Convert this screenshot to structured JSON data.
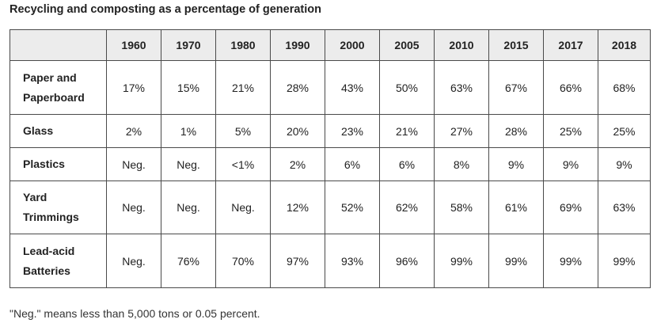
{
  "title": "Recycling and composting as a percentage of generation",
  "table": {
    "years": [
      "1960",
      "1970",
      "1980",
      "1990",
      "2000",
      "2005",
      "2010",
      "2015",
      "2017",
      "2018"
    ],
    "rows": [
      {
        "label_line1": "Paper and",
        "label_line2": "Paperboard",
        "values": [
          "17%",
          "15%",
          "21%",
          "28%",
          "43%",
          "50%",
          "63%",
          "67%",
          "66%",
          "68%"
        ]
      },
      {
        "label_line1": "Glass",
        "label_line2": "",
        "values": [
          "2%",
          "1%",
          "5%",
          "20%",
          "23%",
          "21%",
          "27%",
          "28%",
          "25%",
          "25%"
        ]
      },
      {
        "label_line1": "Plastics",
        "label_line2": "",
        "values": [
          "Neg.",
          "Neg.",
          "<1%",
          "2%",
          "6%",
          "6%",
          "8%",
          "9%",
          "9%",
          "9%"
        ]
      },
      {
        "label_line1": "Yard",
        "label_line2": "Trimmings",
        "values": [
          "Neg.",
          "Neg.",
          "Neg.",
          "12%",
          "52%",
          "62%",
          "58%",
          "61%",
          "69%",
          "63%"
        ]
      },
      {
        "label_line1": "Lead-acid",
        "label_line2": "Batteries",
        "values": [
          "Neg.",
          "76%",
          "70%",
          "97%",
          "93%",
          "96%",
          "99%",
          "99%",
          "99%",
          "99%"
        ]
      }
    ]
  },
  "footnote": "\"Neg.\" means less than 5,000 tons or 0.05 percent."
}
